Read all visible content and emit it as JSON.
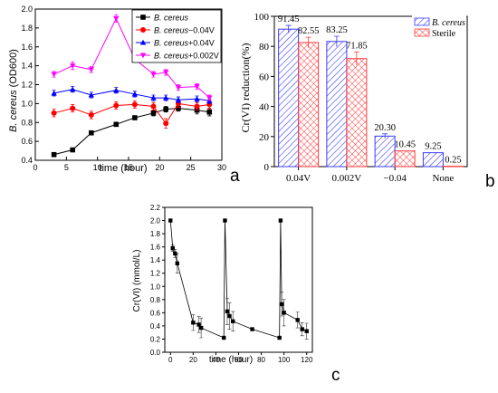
{
  "panel_labels": [
    "a",
    "b",
    "c"
  ],
  "chart_data": [
    {
      "panel": "a",
      "type": "line",
      "xlabel": "time (hour)",
      "ylabel_italic": "B. cereus",
      "ylabel_rest": " (OD600)",
      "xlim": [
        0,
        30
      ],
      "ylim": [
        0.4,
        2.0
      ],
      "xticks": [
        0,
        5,
        10,
        15,
        20,
        25,
        30
      ],
      "yticks": [
        0.4,
        0.6,
        0.8,
        1.0,
        1.2,
        1.4,
        1.6,
        1.8,
        2.0
      ],
      "x": [
        3,
        6,
        9,
        13,
        16,
        19,
        21,
        23,
        26,
        28
      ],
      "series": [
        {
          "name": "B. cereus",
          "color": "#000000",
          "marker": "square",
          "values": [
            0.46,
            0.51,
            0.69,
            0.78,
            0.85,
            0.9,
            0.94,
            0.95,
            0.93,
            0.91
          ],
          "errors": [
            0.01,
            0.01,
            0.02,
            0.02,
            0.02,
            0.03,
            0.03,
            0.03,
            0.04,
            0.04
          ]
        },
        {
          "name": "B. cereus−0.04V",
          "color": "#ff0000",
          "marker": "circle",
          "values": [
            0.9,
            0.95,
            0.88,
            0.98,
            0.99,
            0.97,
            0.79,
            1.0,
            0.97,
            0.99
          ],
          "errors": [
            0.04,
            0.04,
            0.04,
            0.04,
            0.04,
            0.04,
            0.05,
            0.04,
            0.04,
            0.05
          ]
        },
        {
          "name": "B. cereus+0.04V",
          "color": "#0000ff",
          "marker": "triangle-up",
          "values": [
            1.11,
            1.15,
            1.09,
            1.14,
            1.1,
            1.06,
            1.06,
            1.04,
            1.05,
            1.03
          ],
          "errors": [
            0.03,
            0.03,
            0.03,
            0.03,
            0.03,
            0.03,
            0.03,
            0.03,
            0.03,
            0.03
          ]
        },
        {
          "name": "B. cereus+0.002V",
          "color": "#ff00ff",
          "marker": "triangle-down",
          "values": [
            1.31,
            1.4,
            1.36,
            1.9,
            1.47,
            1.31,
            1.33,
            1.17,
            1.18,
            1.06
          ],
          "errors": [
            0.03,
            0.04,
            0.03,
            0.04,
            0.03,
            0.03,
            0.03,
            0.03,
            0.03,
            0.03
          ]
        }
      ],
      "legend_position": "top-right"
    },
    {
      "panel": "b",
      "type": "bar",
      "ylabel": "Cr(VI) reduction(%)",
      "ylim": [
        0,
        100
      ],
      "yticks": [
        0,
        20,
        40,
        60,
        80,
        100
      ],
      "categories": [
        "0.04V",
        "0.002V",
        "−0.04",
        "None"
      ],
      "series": [
        {
          "name": "B. cereus",
          "color": "#3c3cff",
          "pattern": "hatch",
          "values": [
            91.45,
            83.25,
            20.3,
            9.25
          ],
          "labels": [
            "91.45",
            "83.25",
            "20.30",
            "9.25"
          ],
          "errors": [
            2.5,
            3.5,
            1.5,
            0
          ]
        },
        {
          "name": "Sterile",
          "color": "#ff3c3c",
          "pattern": "crosshatch",
          "values": [
            82.55,
            71.85,
            10.45,
            0.25
          ],
          "labels": [
            "82.55",
            "71.85",
            "10.45",
            "0.25"
          ],
          "errors": [
            3.5,
            4.5,
            0,
            0
          ]
        }
      ],
      "legend_position": "top-right"
    },
    {
      "panel": "c",
      "type": "line",
      "xlabel": "time (hour)",
      "ylabel": "Cr(VI) (mmol/L)",
      "xlim": [
        -5,
        125
      ],
      "ylim": [
        0.0,
        2.2
      ],
      "xticks": [
        0,
        20,
        40,
        60,
        80,
        100,
        120
      ],
      "yticks": [
        0.0,
        0.2,
        0.4,
        0.6,
        0.8,
        1.0,
        1.2,
        1.4,
        1.6,
        1.8,
        2.0,
        2.2
      ],
      "series": [
        {
          "name": "",
          "color": "#000000",
          "marker": "square",
          "x": [
            0,
            2,
            4,
            6,
            20,
            25,
            27,
            47,
            48,
            50,
            52,
            55,
            72,
            96,
            97,
            98,
            100,
            112,
            116,
            120
          ],
          "values": [
            2.0,
            1.58,
            1.5,
            1.35,
            0.45,
            0.42,
            0.37,
            0.22,
            2.0,
            0.62,
            0.55,
            0.47,
            0.35,
            0.22,
            2.0,
            0.73,
            0.6,
            0.49,
            0.35,
            0.32
          ],
          "errors": [
            0.0,
            0.05,
            0.06,
            0.15,
            0.12,
            0.12,
            0.15,
            0.0,
            0.0,
            0.2,
            0.2,
            0.15,
            0.0,
            0.0,
            0.0,
            0.18,
            0.2,
            0.12,
            0.1,
            0.12
          ]
        }
      ]
    }
  ]
}
